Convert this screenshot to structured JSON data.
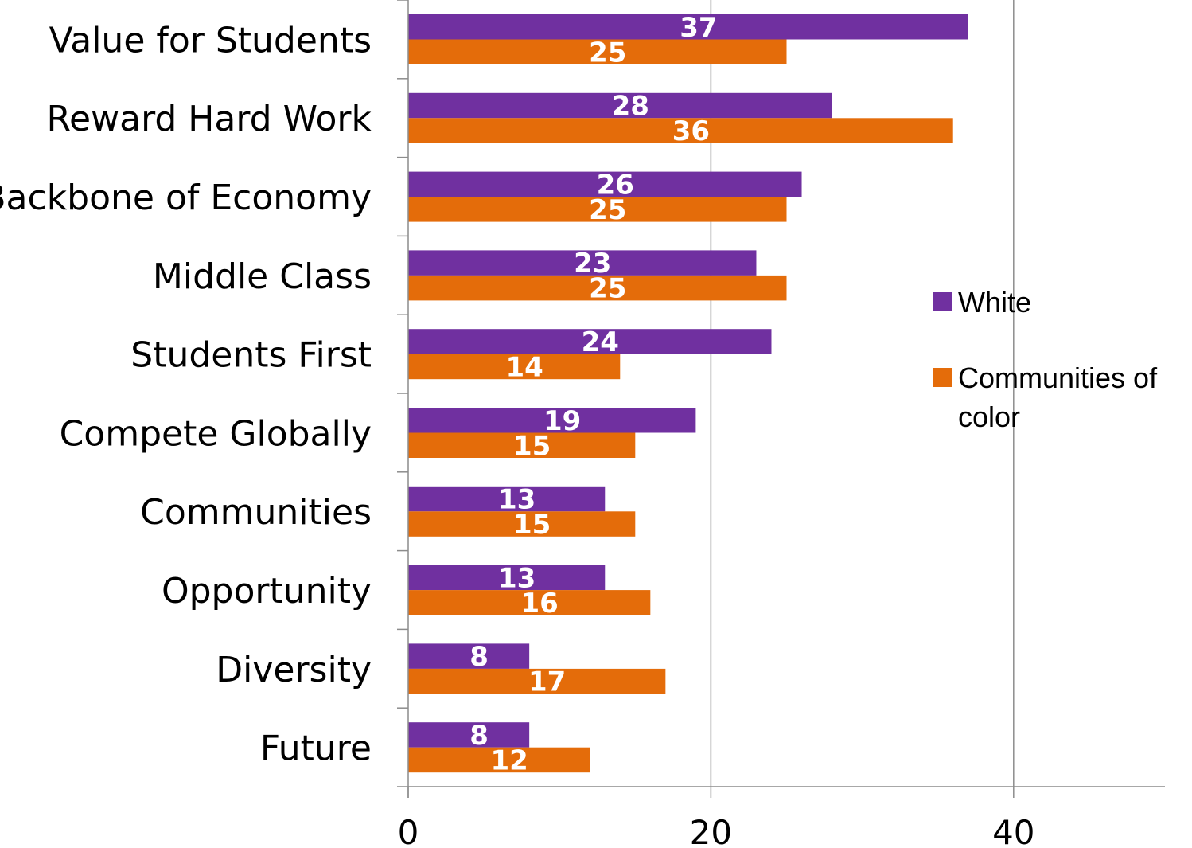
{
  "chart_data": {
    "type": "bar",
    "orientation": "horizontal",
    "categories": [
      "Value for Students",
      "Reward Hard Work",
      "Backbone of Economy",
      "Middle Class",
      "Students First",
      "Compete Globally",
      "Communities",
      "Opportunity",
      "Diversity",
      "Future"
    ],
    "series": [
      {
        "name": "White",
        "color": "#7030A0",
        "values": [
          37,
          28,
          26,
          23,
          24,
          19,
          13,
          13,
          8,
          8
        ]
      },
      {
        "name": "Communities of color",
        "color": "#E46C0A",
        "values": [
          25,
          36,
          25,
          25,
          14,
          15,
          15,
          16,
          17,
          12
        ]
      }
    ],
    "xlim": [
      0,
      50
    ],
    "x_ticks": [
      "0",
      "20",
      "40"
    ],
    "grid": "vertical",
    "legend_position": "right",
    "title": "",
    "xlabel": "",
    "ylabel": ""
  }
}
